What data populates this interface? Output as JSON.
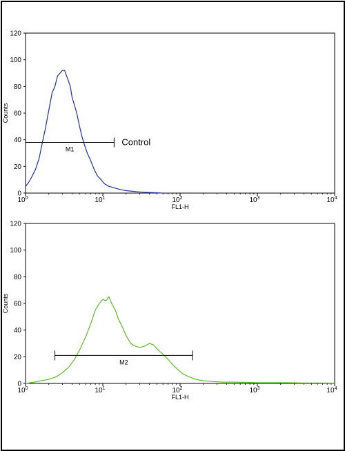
{
  "chart_data": [
    {
      "type": "line",
      "x_scale": "log",
      "xlim": [
        1,
        10000
      ],
      "ylim": [
        0,
        120
      ],
      "xlabel": "FL1-H",
      "ylabel": "Counts",
      "yticks": [
        "0",
        "20",
        "40",
        "60",
        "80",
        "100",
        "120"
      ],
      "xtick_bases": [
        "10",
        "10",
        "10",
        "10",
        "10"
      ],
      "xtick_exps": [
        "0",
        "1",
        "2",
        "3",
        "4"
      ],
      "series": [
        {
          "color": "#1f2fa0",
          "x": [
            1.0,
            1.1,
            1.2,
            1.35,
            1.5,
            1.65,
            1.8,
            2.0,
            2.2,
            2.4,
            2.6,
            2.8,
            3.0,
            3.2,
            3.4,
            3.6,
            3.8,
            4.0,
            4.3,
            4.6,
            5.0,
            5.4,
            5.8,
            6.3,
            7.0,
            7.7,
            8.5,
            9.5,
            10.5,
            12,
            14,
            16,
            19,
            23,
            28,
            35,
            45,
            60
          ],
          "y": [
            5,
            8,
            12,
            18,
            26,
            38,
            48,
            62,
            75,
            80,
            88,
            90,
            92,
            92,
            88,
            84,
            80,
            72,
            66,
            60,
            50,
            42,
            36,
            30,
            24,
            18,
            13,
            10,
            7,
            5,
            4,
            3,
            2,
            1.5,
            1,
            0.6,
            0.3,
            0
          ]
        }
      ],
      "gate": {
        "label": "M1",
        "x_range": [
          1.0,
          14
        ],
        "y": 38
      },
      "annotation": "Control"
    },
    {
      "type": "line",
      "x_scale": "log",
      "xlim": [
        1,
        10000
      ],
      "ylim": [
        0,
        120
      ],
      "xlabel": "FL1-H",
      "ylabel": "Counts",
      "yticks": [
        "0",
        "20",
        "40",
        "60",
        "80",
        "100",
        "120"
      ],
      "xtick_bases": [
        "10",
        "10",
        "10",
        "10",
        "10"
      ],
      "xtick_exps": [
        "0",
        "1",
        "2",
        "3",
        "4"
      ],
      "series": [
        {
          "color": "#5dbb2a",
          "x": [
            1.0,
            1.3,
            1.6,
            2.0,
            2.5,
            3.0,
            3.6,
            4.3,
            5.0,
            6.0,
            7.0,
            8.0,
            9.0,
            10,
            11,
            12,
            13,
            14.5,
            16,
            18,
            20,
            23,
            26,
            30,
            35,
            40,
            45,
            52,
            60,
            70,
            80,
            95,
            110,
            130,
            160,
            200,
            260,
            350,
            500,
            700,
            1000,
            1500,
            2500,
            4000,
            6000,
            10000
          ],
          "y": [
            0,
            1,
            2,
            3,
            5,
            8,
            12,
            18,
            25,
            35,
            45,
            55,
            60,
            63,
            62,
            65,
            60,
            55,
            48,
            42,
            36,
            30,
            28,
            27,
            28,
            30,
            29,
            25,
            22,
            18,
            14,
            10,
            7,
            5,
            3,
            2,
            1.5,
            1,
            1,
            0.8,
            0.5,
            0.5,
            0.5,
            0.3,
            0.3,
            0.2
          ]
        }
      ],
      "gate": {
        "label": "M2",
        "x_range": [
          2.4,
          145
        ],
        "y": 21
      }
    }
  ]
}
